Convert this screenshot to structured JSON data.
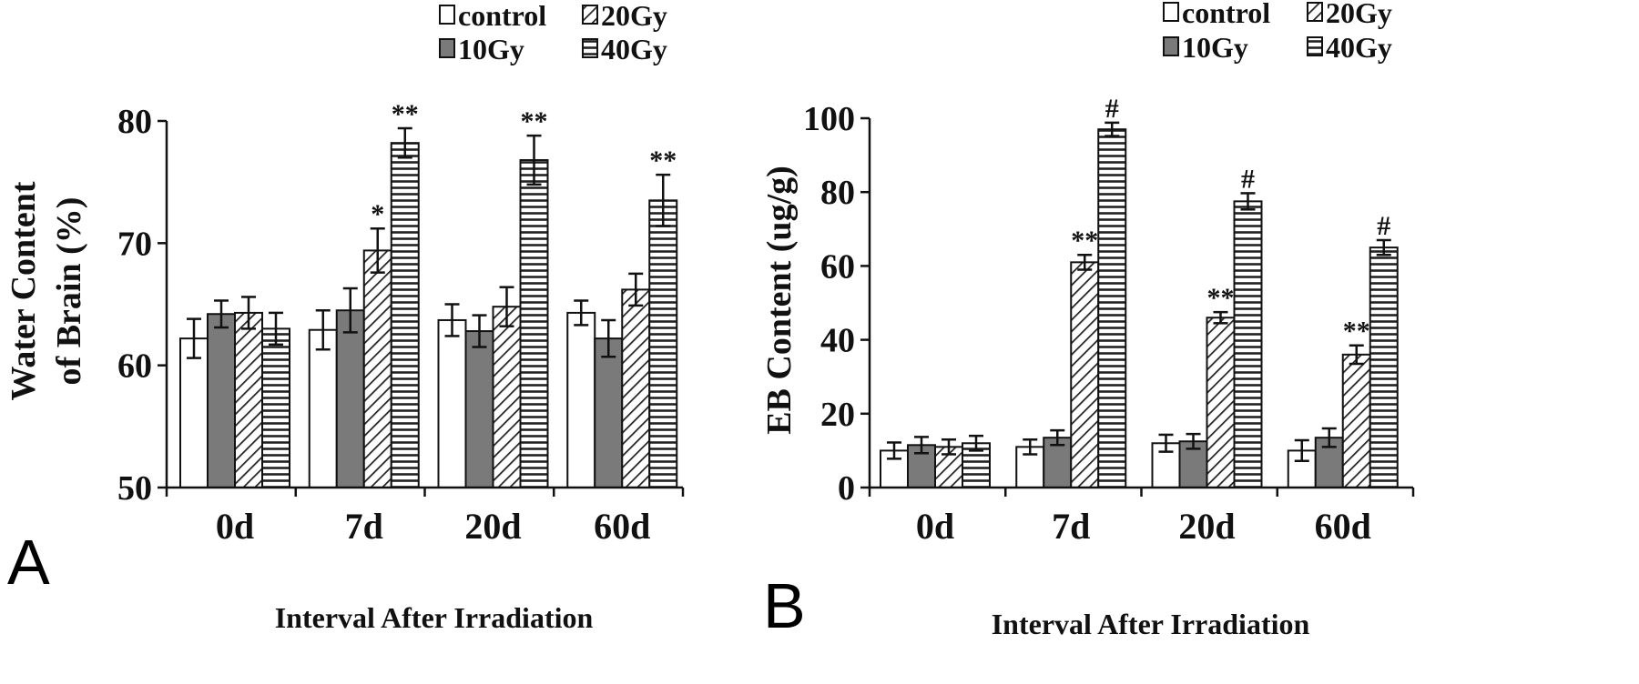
{
  "chart_data": [
    {
      "type": "bar",
      "panel_label": "A",
      "categories": [
        "0d",
        "7d",
        "20d",
        "60d"
      ],
      "xlabel": "Interval After Irradiation",
      "ylabel_lines": [
        "Water Content",
        "of Brain (%)"
      ],
      "ylim": [
        50,
        80
      ],
      "yticks": [
        50,
        60,
        70,
        80
      ],
      "grid": false,
      "legend_position": "top-right",
      "series": [
        {
          "name": "control",
          "pattern": "white",
          "values": [
            62.2,
            62.9,
            63.7,
            64.3
          ],
          "errors": [
            1.6,
            1.6,
            1.3,
            1.0
          ],
          "sig": [
            "",
            "",
            "",
            ""
          ]
        },
        {
          "name": "10Gy",
          "pattern": "gray",
          "values": [
            64.2,
            64.5,
            62.8,
            62.2
          ],
          "errors": [
            1.1,
            1.8,
            1.3,
            1.5
          ],
          "sig": [
            "",
            "",
            "",
            ""
          ]
        },
        {
          "name": "20Gy",
          "pattern": "diagonal",
          "values": [
            64.3,
            69.4,
            64.8,
            66.2
          ],
          "errors": [
            1.3,
            1.8,
            1.6,
            1.3
          ],
          "sig": [
            "",
            "*",
            "",
            ""
          ]
        },
        {
          "name": "40Gy",
          "pattern": "horizontal",
          "values": [
            63.0,
            78.2,
            76.8,
            73.5
          ],
          "errors": [
            1.3,
            1.2,
            2.0,
            2.1
          ],
          "sig": [
            "",
            "**",
            "**",
            "**"
          ]
        }
      ]
    },
    {
      "type": "bar",
      "panel_label": "B",
      "categories": [
        "0d",
        "7d",
        "20d",
        "60d"
      ],
      "xlabel": "Interval After Irradiation",
      "ylabel_lines": [
        "EB Content (ug/g)"
      ],
      "ylim": [
        0,
        100
      ],
      "yticks": [
        0,
        20,
        40,
        60,
        80,
        100
      ],
      "grid": false,
      "legend_position": "top-right",
      "series": [
        {
          "name": "control",
          "pattern": "white",
          "values": [
            10,
            11,
            12,
            10
          ],
          "errors": [
            2.2,
            2.0,
            2.3,
            2.8
          ],
          "sig": [
            "",
            "",
            "",
            ""
          ]
        },
        {
          "name": "10Gy",
          "pattern": "gray",
          "values": [
            11.5,
            13.5,
            12.5,
            13.5
          ],
          "errors": [
            2.2,
            2.0,
            2.0,
            2.5
          ],
          "sig": [
            "",
            "",
            "",
            ""
          ]
        },
        {
          "name": "20Gy",
          "pattern": "diagonal",
          "values": [
            11,
            61,
            46,
            36
          ],
          "errors": [
            2.0,
            2.0,
            1.5,
            2.5
          ],
          "sig": [
            "",
            "**",
            "**",
            "**"
          ]
        },
        {
          "name": "40Gy",
          "pattern": "horizontal",
          "values": [
            12,
            97,
            77.5,
            65
          ],
          "errors": [
            2.0,
            1.8,
            2.2,
            2.0
          ],
          "sig": [
            "",
            "#",
            "#",
            "#"
          ]
        }
      ]
    }
  ]
}
